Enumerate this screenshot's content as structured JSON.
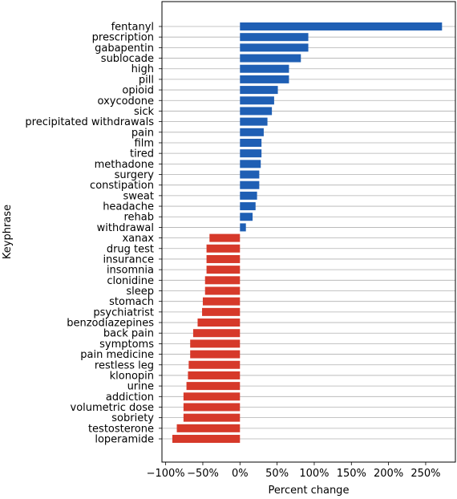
{
  "chart_data": {
    "type": "bar",
    "orientation": "horizontal",
    "xlabel": "Percent change",
    "ylabel": "Keyphrase",
    "xlim": [
      -105,
      290
    ],
    "xticks": [
      -100,
      -50,
      0,
      50,
      100,
      150,
      200,
      250
    ],
    "xtick_labels": [
      "−100%",
      "−50%",
      "0%",
      "50%",
      "100%",
      "150%",
      "200%",
      "250%"
    ],
    "grid": "horizontal lines at each category",
    "colors": {
      "positive": "#1f5fb4",
      "negative": "#d6392a"
    },
    "categories": [
      "fentanyl",
      "prescription",
      "gabapentin",
      "sublocade",
      "high",
      "pill",
      "opioid",
      "oxycodone",
      "sick",
      "precipitated withdrawals",
      "pain",
      "film",
      "tired",
      "methadone",
      "surgery",
      "constipation",
      "sweat",
      "headache",
      "rehab",
      "withdrawal",
      "xanax",
      "drug test",
      "insurance",
      "insomnia",
      "clonidine",
      "sleep",
      "stomach",
      "psychiatrist",
      "benzodiazepines",
      "back pain",
      "symptoms",
      "pain medicine",
      "restless leg",
      "klonopin",
      "urine",
      "addiction",
      "volumetric dose",
      "sobriety",
      "testosterone",
      "loperamide"
    ],
    "values": [
      272,
      92,
      92,
      82,
      66,
      66,
      51,
      46,
      43,
      37,
      32,
      29,
      29,
      28,
      26,
      26,
      23,
      21,
      17,
      8,
      -41,
      -45,
      -45,
      -45,
      -47,
      -47,
      -50,
      -51,
      -57,
      -63,
      -67,
      -67,
      -69,
      -70,
      -72,
      -76,
      -76,
      -76,
      -85,
      -91
    ]
  }
}
